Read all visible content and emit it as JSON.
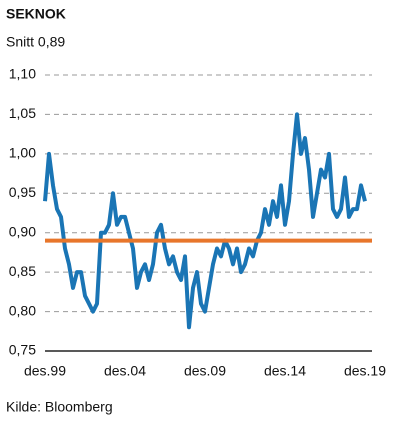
{
  "chart_data": {
    "type": "line",
    "title": "SEKNOK",
    "source": "Kilde: Bloomberg",
    "average": {
      "value": 0.89,
      "label": "Snitt 0,89",
      "color": "#e8762b"
    },
    "x": [
      "1999-12",
      "2000-03",
      "2000-06",
      "2000-09",
      "2000-12",
      "2001-03",
      "2001-06",
      "2001-09",
      "2001-12",
      "2002-03",
      "2002-06",
      "2002-09",
      "2002-12",
      "2003-03",
      "2003-06",
      "2003-09",
      "2003-12",
      "2004-03",
      "2004-06",
      "2004-09",
      "2004-12",
      "2005-03",
      "2005-06",
      "2005-09",
      "2005-12",
      "2006-03",
      "2006-06",
      "2006-09",
      "2006-12",
      "2007-03",
      "2007-06",
      "2007-09",
      "2007-12",
      "2008-03",
      "2008-06",
      "2008-09",
      "2008-12",
      "2009-03",
      "2009-06",
      "2009-09",
      "2009-12",
      "2010-03",
      "2010-06",
      "2010-09",
      "2010-12",
      "2011-03",
      "2011-06",
      "2011-09",
      "2011-12",
      "2012-03",
      "2012-06",
      "2012-09",
      "2012-12",
      "2013-03",
      "2013-06",
      "2013-09",
      "2013-12",
      "2014-03",
      "2014-06",
      "2014-09",
      "2014-12",
      "2015-03",
      "2015-06",
      "2015-09",
      "2015-12",
      "2016-03",
      "2016-06",
      "2016-09",
      "2016-12",
      "2017-03",
      "2017-06",
      "2017-09",
      "2017-12",
      "2018-03",
      "2018-06",
      "2018-09",
      "2018-12",
      "2019-03",
      "2019-06",
      "2019-09",
      "2019-12"
    ],
    "series": [
      {
        "name": "SEKNOK",
        "color": "#1a75b5",
        "values": [
          0.94,
          1.0,
          0.96,
          0.93,
          0.92,
          0.88,
          0.86,
          0.83,
          0.85,
          0.85,
          0.82,
          0.81,
          0.8,
          0.81,
          0.9,
          0.9,
          0.91,
          0.95,
          0.91,
          0.92,
          0.92,
          0.9,
          0.88,
          0.83,
          0.85,
          0.86,
          0.84,
          0.86,
          0.9,
          0.91,
          0.88,
          0.86,
          0.87,
          0.85,
          0.84,
          0.87,
          0.78,
          0.83,
          0.85,
          0.81,
          0.8,
          0.83,
          0.86,
          0.88,
          0.87,
          0.89,
          0.88,
          0.86,
          0.88,
          0.85,
          0.86,
          0.88,
          0.87,
          0.89,
          0.9,
          0.93,
          0.91,
          0.94,
          0.92,
          0.96,
          0.91,
          0.94,
          1.0,
          1.05,
          1.0,
          1.02,
          0.98,
          0.92,
          0.95,
          0.98,
          0.97,
          1.0,
          0.93,
          0.92,
          0.93,
          0.97,
          0.92,
          0.93,
          0.93,
          0.96,
          0.94
        ]
      }
    ],
    "xlim": [
      "1999-12",
      "2019-12"
    ],
    "xticks": [
      {
        "value": "1999-12",
        "label": "des.99"
      },
      {
        "value": "2004-12",
        "label": "des.04"
      },
      {
        "value": "2009-12",
        "label": "des.09"
      },
      {
        "value": "2014-12",
        "label": "des.14"
      },
      {
        "value": "2019-12",
        "label": "des.19"
      }
    ],
    "ylim": [
      0.75,
      1.1
    ],
    "yticks": [
      {
        "value": 0.75,
        "label": "0,75"
      },
      {
        "value": 0.8,
        "label": "0,80"
      },
      {
        "value": 0.85,
        "label": "0,85"
      },
      {
        "value": 0.9,
        "label": "0,90"
      },
      {
        "value": 0.95,
        "label": "0,95"
      },
      {
        "value": 1.0,
        "label": "1,00"
      },
      {
        "value": 1.05,
        "label": "1,05"
      },
      {
        "value": 1.1,
        "label": "1,10"
      }
    ],
    "grid": true
  }
}
